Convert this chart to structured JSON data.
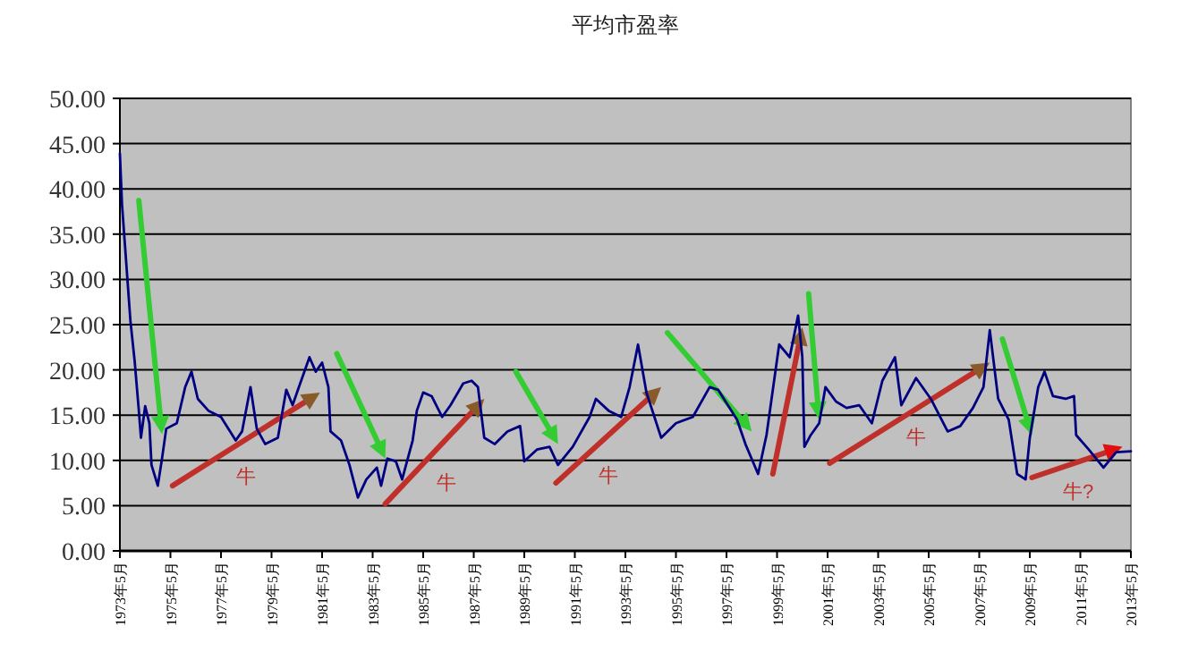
{
  "chart_data": {
    "type": "line",
    "title": "平均市盈率",
    "x": [
      "1973-05",
      "1973-06",
      "1973-10",
      "1973-12",
      "1974-02",
      "1974-03",
      "1974-05",
      "1974-07",
      "1974-08",
      "1974-11",
      "1975-01",
      "1975-03",
      "1975-08",
      "1975-12",
      "1976-03",
      "1976-06",
      "1976-11",
      "1977-05",
      "1977-12",
      "1978-03",
      "1978-07",
      "1978-10",
      "1979-02",
      "1979-08",
      "1979-12",
      "1980-03",
      "1980-06",
      "1980-11",
      "1981-02",
      "1981-05",
      "1981-08",
      "1981-09",
      "1982-02",
      "1982-06",
      "1982-10",
      "1983-02",
      "1983-07",
      "1983-09",
      "1983-12",
      "1984-04",
      "1984-07",
      "1984-12",
      "1985-02",
      "1985-05",
      "1985-09",
      "1986-02",
      "1986-06",
      "1986-12",
      "1987-04",
      "1987-07",
      "1987-10",
      "1988-03",
      "1988-09",
      "1989-03",
      "1989-05",
      "1989-11",
      "1990-05",
      "1990-09",
      "1991-04",
      "1991-12",
      "1992-03",
      "1992-09",
      "1993-03",
      "1993-07",
      "1993-11",
      "1994-03",
      "1994-10",
      "1995-05",
      "1996-01",
      "1996-09",
      "1997-01",
      "1997-10",
      "1998-02",
      "1998-08",
      "1998-12",
      "1999-06",
      "1999-11",
      "2000-03",
      "2000-05",
      "2000-06",
      "2000-09",
      "2001-01",
      "2001-04",
      "2001-09",
      "2002-02",
      "2002-08",
      "2003-02",
      "2003-07",
      "2004-01",
      "2004-04",
      "2004-11",
      "2005-06",
      "2006-02",
      "2006-08",
      "2007-02",
      "2007-07",
      "2007-10",
      "2008-02",
      "2008-07",
      "2008-11",
      "2009-03",
      "2009-05",
      "2009-09",
      "2009-12",
      "2010-04",
      "2010-10",
      "2011-02",
      "2011-03",
      "2011-09",
      "2012-04",
      "2012-10",
      "2013-05"
    ],
    "series": [
      {
        "color": "#000080",
        "values": [
          43.9,
          38.3,
          25.4,
          21,
          15.5,
          12.5,
          16,
          14.1,
          9.5,
          7.2,
          10.2,
          13.5,
          14.1,
          18.1,
          19.8,
          16.8,
          15.5,
          14.8,
          12.2,
          13.2,
          18.1,
          13.5,
          11.8,
          12.5,
          17.8,
          16.1,
          18.1,
          21.4,
          19.8,
          20.8,
          18.1,
          13.2,
          12.2,
          9.5,
          5.9,
          7.9,
          9.2,
          7.2,
          10.2,
          9.9,
          7.9,
          12.2,
          15.5,
          17.5,
          17.1,
          14.8,
          16.1,
          18.5,
          18.8,
          18.1,
          12.5,
          11.8,
          13.2,
          13.8,
          9.9,
          11.2,
          11.5,
          9.5,
          11.5,
          14.8,
          16.8,
          15.5,
          14.8,
          18.1,
          22.8,
          17.5,
          12.5,
          14.1,
          14.8,
          18.1,
          17.8,
          14.5,
          11.8,
          8.5,
          12.8,
          22.8,
          21.4,
          26,
          21.4,
          11.5,
          12.8,
          14.1,
          18.1,
          16.5,
          15.8,
          16.1,
          14.1,
          18.8,
          21.4,
          16.1,
          19.1,
          16.8,
          13.2,
          13.8,
          15.8,
          18.1,
          24.4,
          16.8,
          14.5,
          8.5,
          7.9,
          12.5,
          18.1,
          19.8,
          17.1,
          16.8,
          17.1,
          12.8,
          11.2,
          9.2,
          10.9,
          11
        ]
      }
    ],
    "xlim": [
      "1973-05",
      "2013-05"
    ],
    "xticks": [
      {
        "value": "1973-05",
        "label": "1973年5月"
      },
      {
        "value": "1975-05",
        "label": "1975年5月"
      },
      {
        "value": "1977-05",
        "label": "1977年5月"
      },
      {
        "value": "1979-05",
        "label": "1979年5月"
      },
      {
        "value": "1981-05",
        "label": "1981年5月"
      },
      {
        "value": "1983-05",
        "label": "1983年5月"
      },
      {
        "value": "1985-05",
        "label": "1985年5月"
      },
      {
        "value": "1987-05",
        "label": "1987年5月"
      },
      {
        "value": "1989-05",
        "label": "1989年5月"
      },
      {
        "value": "1991-05",
        "label": "1991年5月"
      },
      {
        "value": "1993-05",
        "label": "1993年5月"
      },
      {
        "value": "1995-05",
        "label": "1995年5月"
      },
      {
        "value": "1997-05",
        "label": "1997年5月"
      },
      {
        "value": "1999-05",
        "label": "1999年5月"
      },
      {
        "value": "2001-05",
        "label": "2001年5月"
      },
      {
        "value": "2003-05",
        "label": "2003年5月"
      },
      {
        "value": "2005-05",
        "label": "2005年5月"
      },
      {
        "value": "2007-05",
        "label": "2007年5月"
      },
      {
        "value": "2009-05",
        "label": "2009年5月"
      },
      {
        "value": "2011-05",
        "label": "2011年5月"
      },
      {
        "value": "2013-05",
        "label": "2013年5月"
      }
    ],
    "ylim": [
      0,
      50
    ],
    "yticks": [
      {
        "value": 0,
        "label": "0.00"
      },
      {
        "value": 5,
        "label": "5.00"
      },
      {
        "value": 10,
        "label": "10.00"
      },
      {
        "value": 15,
        "label": "15.00"
      },
      {
        "value": 20,
        "label": "20.00"
      },
      {
        "value": 25,
        "label": "25.00"
      },
      {
        "value": 30,
        "label": "30.00"
      },
      {
        "value": 35,
        "label": "35.00"
      },
      {
        "value": 40,
        "label": "40.00"
      },
      {
        "value": 45,
        "label": "45.00"
      },
      {
        "value": 50,
        "label": "50.00"
      }
    ],
    "grid": "y",
    "annotations": [
      "牛",
      "牛",
      "牛",
      "牛",
      "牛?"
    ]
  }
}
